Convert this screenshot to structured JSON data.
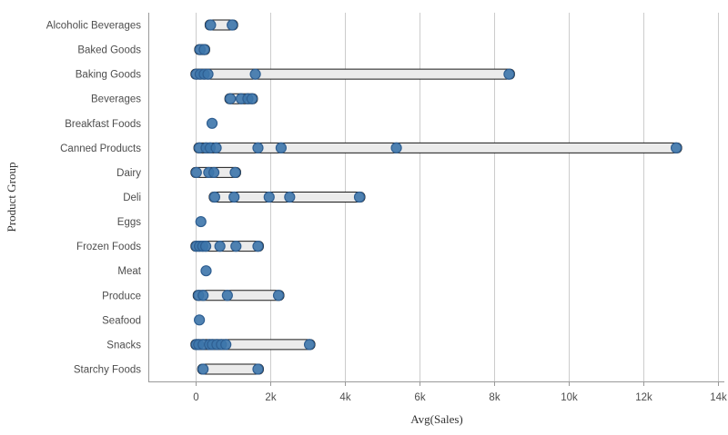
{
  "chart_data": {
    "type": "scatter",
    "variant": "distribution-plot",
    "xlabel": "Avg(Sales)",
    "ylabel": "Product Group",
    "xlim": [
      0,
      14000
    ],
    "grid": "vertical-gridlines",
    "legend": "none",
    "x_ticks": [
      {
        "value": 0,
        "label": "0"
      },
      {
        "value": 2000,
        "label": "2k"
      },
      {
        "value": 4000,
        "label": "4k"
      },
      {
        "value": 6000,
        "label": "6k"
      },
      {
        "value": 8000,
        "label": "8k"
      },
      {
        "value": 10000,
        "label": "10k"
      },
      {
        "value": 12000,
        "label": "12k"
      },
      {
        "value": 14000,
        "label": "14k"
      }
    ],
    "categories": [
      "Alcoholic Beverages",
      "Baked Goods",
      "Baking Goods",
      "Beverages",
      "Breakfast Foods",
      "Canned Products",
      "Dairy",
      "Deli",
      "Eggs",
      "Frozen Foods",
      "Meat",
      "Produce",
      "Seafood",
      "Snacks",
      "Starchy Foods"
    ],
    "series": [
      {
        "name": "Alcoholic Beverages",
        "values": [
          400,
          980
        ]
      },
      {
        "name": "Baked Goods",
        "values": [
          120,
          230
        ]
      },
      {
        "name": "Baking Goods",
        "values": [
          20,
          120,
          230,
          330,
          1600,
          8400
        ]
      },
      {
        "name": "Beverages",
        "values": [
          930,
          1220,
          1400,
          1510
        ]
      },
      {
        "name": "Breakfast Foods",
        "values": [
          440
        ]
      },
      {
        "name": "Canned Products",
        "values": [
          100,
          280,
          390,
          550,
          1670,
          2290,
          5380,
          12880
        ]
      },
      {
        "name": "Dairy",
        "values": [
          20,
          350,
          490,
          1060
        ]
      },
      {
        "name": "Deli",
        "values": [
          510,
          1030,
          1970,
          2520,
          4390
        ]
      },
      {
        "name": "Eggs",
        "values": [
          140
        ]
      },
      {
        "name": "Frozen Foods",
        "values": [
          20,
          100,
          190,
          270,
          650,
          1080,
          1670
        ]
      },
      {
        "name": "Meat",
        "values": [
          280
        ]
      },
      {
        "name": "Produce",
        "values": [
          80,
          200,
          850,
          2220
        ]
      },
      {
        "name": "Seafood",
        "values": [
          100
        ]
      },
      {
        "name": "Snacks",
        "values": [
          20,
          80,
          200,
          370,
          450,
          570,
          690,
          810,
          3050
        ]
      },
      {
        "name": "Starchy Foods",
        "values": [
          200,
          1670
        ]
      }
    ],
    "colors": {
      "point_fill": "#3d76ab",
      "point_stroke": "#2e5e91",
      "range_bar_fill": "#ebebeb",
      "range_bar_stroke": "#1a1a1a",
      "gridline": "#cccccc",
      "axis_line": "#999999",
      "tick_text": "#4d4d4d",
      "axis_title_text": "#333333",
      "background": "#ffffff"
    }
  }
}
